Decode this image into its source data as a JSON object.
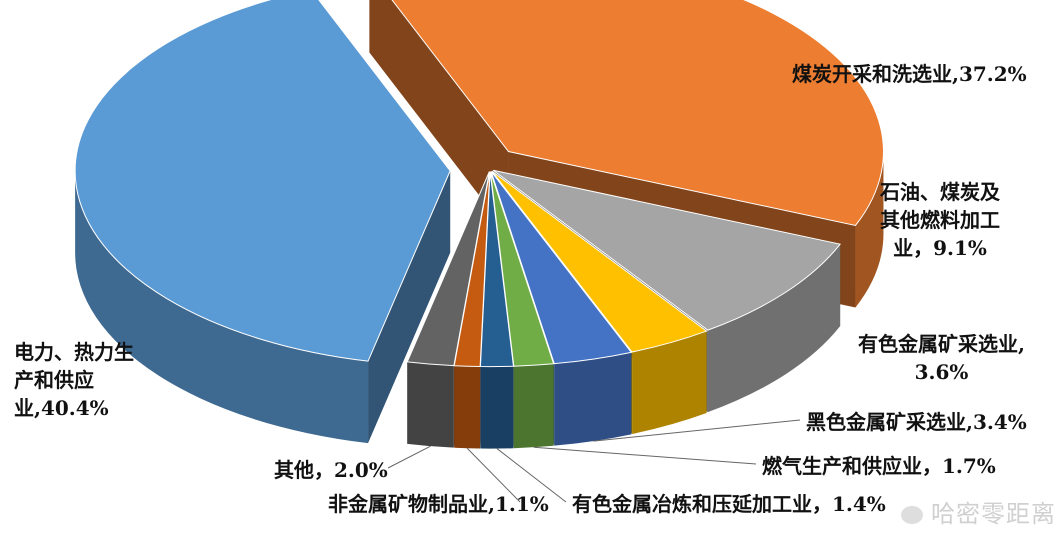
{
  "chart_data": {
    "type": "pie",
    "title": "",
    "slices": [
      {
        "label": "电力、热力生\n产和供应\n业,40.4%",
        "value": 40.4,
        "color": "#5b9bd5"
      },
      {
        "label": "煤炭开采和洗选业,37.2%",
        "value": 37.2,
        "color": "#ed7d31"
      },
      {
        "label": "石油、煤炭及\n其他燃料加工\n业，9.1%",
        "value": 9.1,
        "color": "#a5a5a5"
      },
      {
        "label": "有色金属矿采选业,\n3.6%",
        "value": 3.6,
        "color": "#ffc000"
      },
      {
        "label": "黑色金属矿采选业,3.4%",
        "value": 3.4,
        "color": "#4472c4"
      },
      {
        "label": "燃气生产和供应业，1.7%",
        "value": 1.7,
        "color": "#70ad47"
      },
      {
        "label": "有色金属冶炼和压延加工业，1.4%",
        "value": 1.4,
        "color": "#255e91"
      },
      {
        "label": "非金属矿物制品业,1.1%",
        "value": 1.1,
        "color": "#c55a11"
      },
      {
        "label": "其他，2.0%",
        "value": 2.0,
        "color": "#636363"
      }
    ]
  },
  "watermark": "哈密零距离"
}
